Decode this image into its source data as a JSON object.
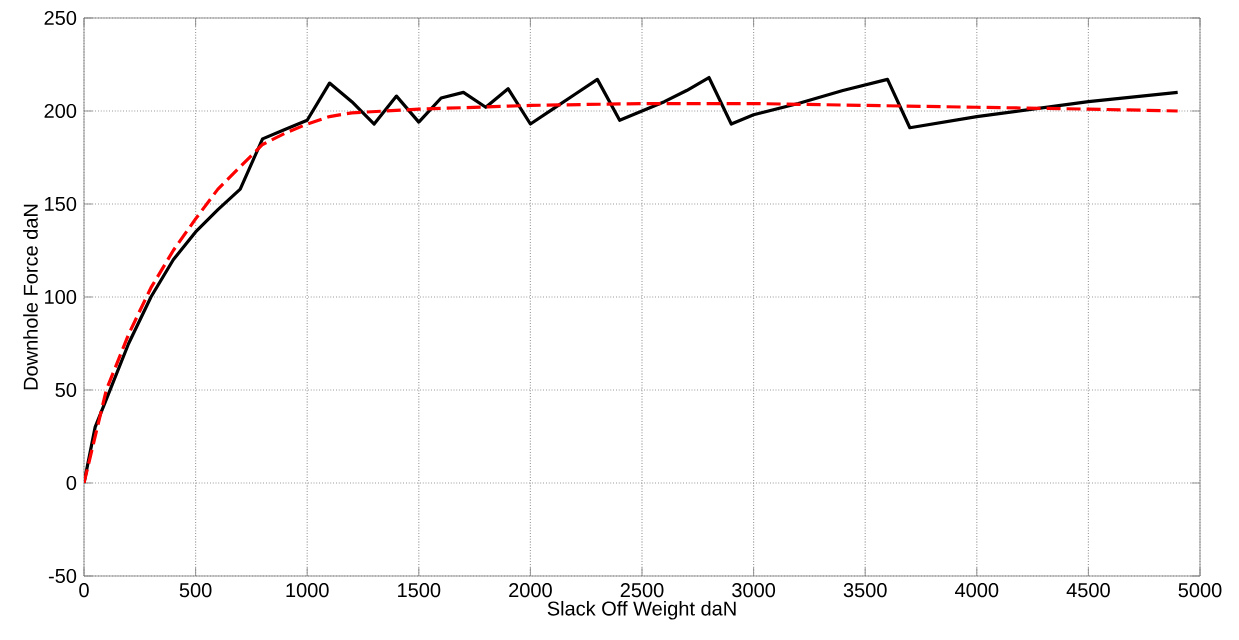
{
  "chart_data": {
    "type": "line",
    "xlabel": "Slack Off Weight daN",
    "ylabel": "Downhole Force daN",
    "xlim": [
      0,
      5000
    ],
    "ylim": [
      -50,
      250
    ],
    "xticks": [
      0,
      500,
      1000,
      1500,
      2000,
      2500,
      3000,
      3500,
      4000,
      4500,
      5000
    ],
    "yticks": [
      -50,
      0,
      50,
      100,
      150,
      200,
      250
    ],
    "grid": true,
    "series": [
      {
        "color": "#000000",
        "line_style": "solid",
        "x": [
          0,
          50,
          100,
          200,
          300,
          400,
          500,
          600,
          700,
          800,
          900,
          1000,
          1100,
          1200,
          1300,
          1400,
          1500,
          1600,
          1700,
          1800,
          1900,
          2000,
          2100,
          2200,
          2300,
          2400,
          2500,
          2600,
          2700,
          2800,
          2900,
          3000,
          3200,
          3400,
          3600,
          3700,
          4000,
          4500,
          4900
        ],
        "values": [
          0,
          30,
          45,
          75,
          100,
          120,
          135,
          147,
          158,
          185,
          190,
          195,
          215,
          205,
          193,
          208,
          194,
          207,
          210,
          202,
          212,
          193,
          201,
          209,
          217,
          195,
          200,
          205,
          211,
          218,
          193,
          198,
          204,
          211,
          217,
          191,
          197,
          205,
          210
        ]
      },
      {
        "color": "#ff0000",
        "line_style": "dashed",
        "x": [
          0,
          100,
          200,
          300,
          400,
          500,
          600,
          700,
          800,
          900,
          1000,
          1100,
          1200,
          1500,
          2000,
          2500,
          3000,
          3500,
          4000,
          4500,
          4900
        ],
        "values": [
          0,
          50,
          80,
          105,
          125,
          142,
          158,
          170,
          182,
          188,
          193,
          197,
          199,
          201,
          203,
          204,
          204,
          203,
          202,
          201,
          200
        ]
      }
    ]
  }
}
